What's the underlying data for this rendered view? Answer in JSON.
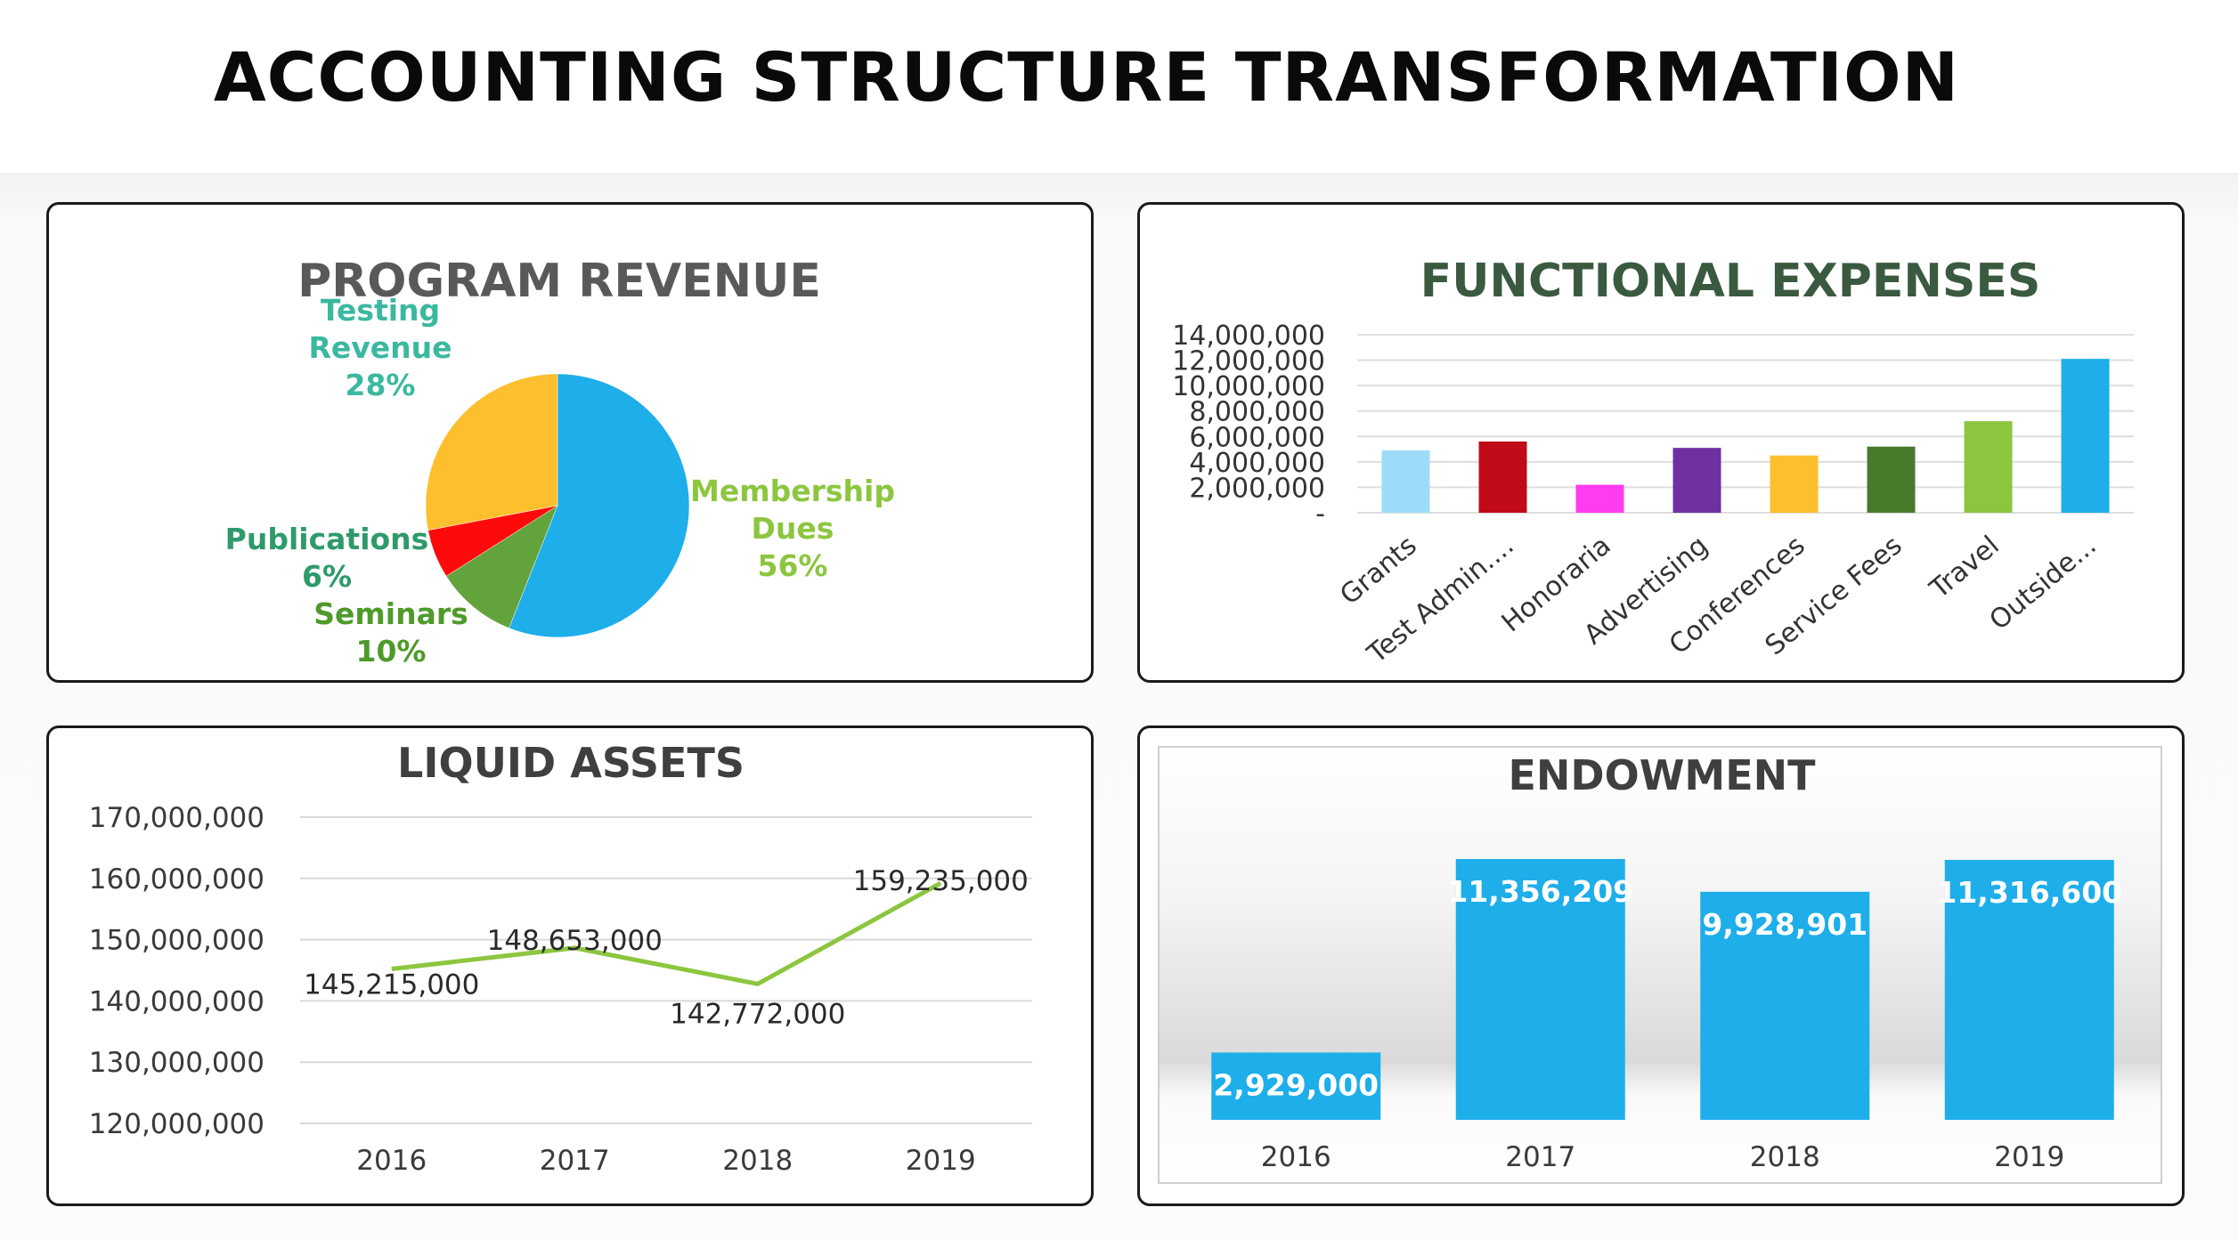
{
  "page": {
    "title": "ACCOUNTING STRUCTURE TRANSFORMATION"
  },
  "colors": {
    "membership": "#1eaeea",
    "seminars": "#63a33c",
    "publications": "#ff0a0a",
    "testing": "#fdbf2d",
    "line": "#8cc63f",
    "endowment_bar": "#1eaeea"
  },
  "chart_data": [
    {
      "type": "pie",
      "title": "PROGRAM REVENUE",
      "slices": [
        {
          "label": [
            "Membership",
            "Dues"
          ],
          "value": 56,
          "pct": "56%",
          "color": "#1eaeea",
          "label_color": "#8cc63f"
        },
        {
          "label": [
            "Seminars"
          ],
          "value": 10,
          "pct": "10%",
          "color": "#63a33c",
          "label_color": "#4e9a2a"
        },
        {
          "label": [
            "Publications"
          ],
          "value": 6,
          "pct": "6%",
          "color": "#ff0a0a",
          "label_color": "#2e9a6a"
        },
        {
          "label": [
            "Testing",
            "Revenue"
          ],
          "value": 28,
          "pct": "28%",
          "color": "#fdbf2d",
          "label_color": "#3bb8a0"
        }
      ]
    },
    {
      "type": "bar",
      "title": "FUNCTIONAL EXPENSES",
      "categories": [
        "Grants",
        "Test Admin....",
        "Honoraria",
        "Advertising",
        "Conferences",
        "Service Fees",
        "Travel",
        "Outside..."
      ],
      "values": [
        4900000,
        5600000,
        2200000,
        5100000,
        4500000,
        5200000,
        7200000,
        12100000
      ],
      "colors": [
        "#9cdcf8",
        "#c00a18",
        "#ff3cf0",
        "#7030a0",
        "#fdbf2d",
        "#487a2c",
        "#8cc63f",
        "#1eaeea"
      ],
      "yticks": [
        "-",
        "2,000,000",
        "4,000,000",
        "6,000,000",
        "8,000,000",
        "10,000,000",
        "12,000,000",
        "14,000,000"
      ],
      "ylim": [
        0,
        14000000
      ]
    },
    {
      "type": "line",
      "title": "LIQUID ASSETS",
      "x": [
        "2016",
        "2017",
        "2018",
        "2019"
      ],
      "values": [
        145215000,
        148653000,
        142772000,
        159235000
      ],
      "labels": [
        "145,215,000",
        "148,653,000",
        "142,772,000",
        "159,235,000"
      ],
      "yticks": [
        "120,000,000",
        "130,000,000",
        "140,000,000",
        "150,000,000",
        "160,000,000",
        "170,000,000"
      ],
      "ylim": [
        120000000,
        170000000
      ]
    },
    {
      "type": "bar",
      "title": "ENDOWMENT",
      "categories": [
        "2016",
        "2017",
        "2018",
        "2019"
      ],
      "values": [
        2929000,
        11356209,
        9928901,
        11316600
      ],
      "labels": [
        "2,929,000",
        "11,356,209",
        "9,928,901",
        "11,316,600"
      ],
      "ylim": [
        0,
        11356209
      ]
    }
  ]
}
